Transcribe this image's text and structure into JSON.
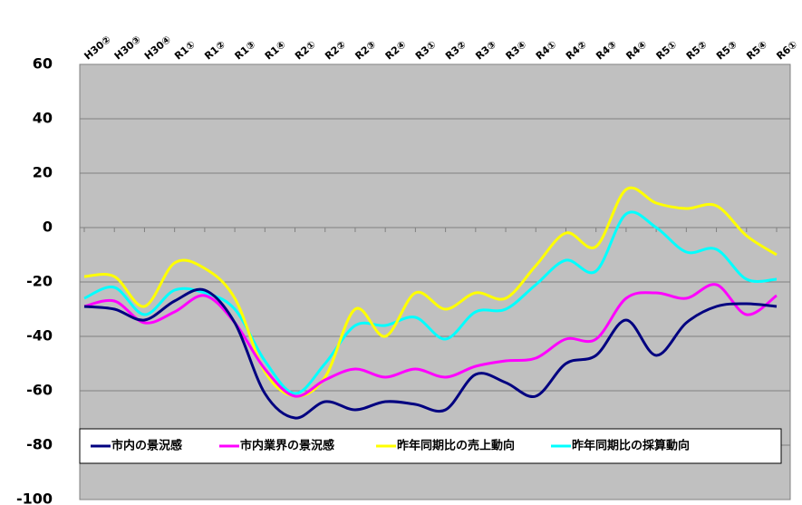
{
  "chart_data": {
    "type": "line",
    "categories": [
      "H30②",
      "H30③",
      "H30④",
      "R1①",
      "R1②",
      "R1③",
      "R1④",
      "R2①",
      "R2②",
      "R2③",
      "R2④",
      "R3①",
      "R3②",
      "R3③",
      "R3④",
      "R4①",
      "R4②",
      "R4③",
      "R4④",
      "R5①",
      "R5②",
      "R5③",
      "R5④",
      "R6①"
    ],
    "series": [
      {
        "name": "市内の景況感",
        "color": "#000080",
        "values": [
          -29,
          -30,
          -34,
          -27,
          -23,
          -35,
          -61,
          -70,
          -64,
          -67,
          -64,
          -65,
          -67,
          -54,
          -57,
          -62,
          -50,
          -47,
          -34,
          -47,
          -35,
          -29,
          -28,
          -29
        ]
      },
      {
        "name": "市内業界の景況感",
        "color": "#ff00ff",
        "values": [
          -29,
          -27,
          -35,
          -31,
          -25,
          -35,
          -52,
          -62,
          -56,
          -52,
          -55,
          -52,
          -55,
          -51,
          -49,
          -48,
          -41,
          -41,
          -26,
          -24,
          -26,
          -21,
          -32,
          -25
        ]
      },
      {
        "name": "昨年同期比の売上動向",
        "color": "#ffff00",
        "values": [
          -18,
          -18,
          -29,
          -13,
          -15,
          -26,
          -53,
          -62,
          -55,
          -30,
          -40,
          -24,
          -30,
          -24,
          -26,
          -14,
          -2,
          -7,
          14,
          9,
          7,
          8,
          -3,
          -10
        ]
      },
      {
        "name": "昨年同期比の採算動向",
        "color": "#00ffff",
        "values": [
          -26,
          -22,
          -32,
          -23,
          -24,
          -30,
          -49,
          -61,
          -50,
          -36,
          -36,
          -33,
          -41,
          -31,
          -30,
          -21,
          -12,
          -16,
          5,
          0,
          -9,
          -8,
          -19,
          -19
        ]
      }
    ],
    "ylim": [
      -100,
      60
    ],
    "yticks": [
      -100,
      -80,
      -60,
      -40,
      -20,
      0,
      20,
      40,
      60
    ],
    "grid": true,
    "legend": "bottom"
  }
}
